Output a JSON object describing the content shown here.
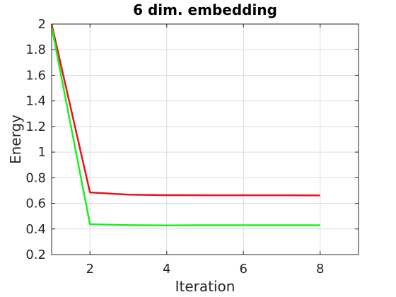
{
  "chart_data": {
    "type": "line",
    "title": "6 dim. embedding",
    "xlabel": "Iteration",
    "ylabel": "Energy",
    "xlim": [
      1,
      9
    ],
    "ylim": [
      0.2,
      2
    ],
    "xticks": [
      "2",
      "4",
      "6",
      "8"
    ],
    "yticks": [
      "0.2",
      "0.4",
      "0.6",
      "0.8",
      "1",
      "1.2",
      "1.4",
      "1.6",
      "1.8",
      "2"
    ],
    "grid": true,
    "x": [
      1,
      2,
      3,
      4,
      5,
      6,
      7,
      8
    ],
    "series": [
      {
        "color": "#e8141c",
        "values": [
          2.0,
          0.685,
          0.668,
          0.664,
          0.663,
          0.663,
          0.663,
          0.662
        ]
      },
      {
        "color": "#19f020",
        "values": [
          1.98,
          0.437,
          0.43,
          0.428,
          0.429,
          0.429,
          0.429,
          0.429
        ]
      }
    ]
  }
}
